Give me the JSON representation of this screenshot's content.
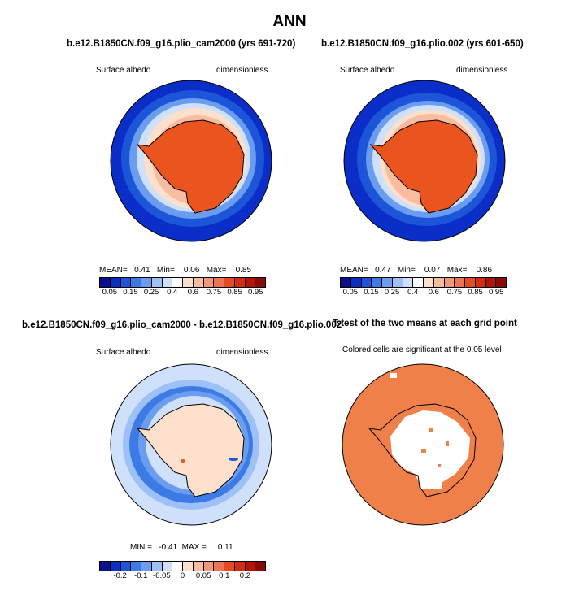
{
  "title": "ANN",
  "panels": [
    {
      "title": "b.e12.B1850CN.f09_g16.plio_cam2000 (yrs 691-720)",
      "left_label": "Surface albedo",
      "right_label": "dimensionless",
      "stats": "MEAN=   0.41   Min=    0.06   Max=    0.85"
    },
    {
      "title": "b.e12.B1850CN.f09_g16.plio.002 (yrs 601-650)",
      "left_label": "Surface albedo",
      "right_label": "dimensionless",
      "stats": "MEAN=   0.47   Min=    0.07   Max=    0.86"
    },
    {
      "title": "b.e12.B1850CN.f09_g16.plio_cam2000 - b.e12.B1850CN.f09_g16.plio.002",
      "left_label": "Surface albedo",
      "right_label": "dimensionless",
      "stats": "MIN =   -0.41  MAX =     0.11"
    },
    {
      "title": "T-test of the two means at each grid point",
      "subtitle": "Colored cells are significant at the 0.05 level"
    }
  ],
  "colorbar_abs": {
    "labels": [
      "0.05",
      "0.15",
      "0.25",
      "0.4",
      "0.6",
      "0.75",
      "0.85",
      "0.95"
    ],
    "colors": [
      "#08108a",
      "#0a2fc4",
      "#1d55d9",
      "#3c7ae6",
      "#6a9cf0",
      "#9dc0f7",
      "#cfe0fb",
      "#ffffff",
      "#fde0cc",
      "#f8bca0",
      "#f2987a",
      "#ed7352",
      "#e64a22",
      "#d42d0e",
      "#b11506",
      "#8a0a04"
    ]
  },
  "colorbar_diff": {
    "labels": [
      "-0.2",
      "-0.1",
      "-0.05",
      "0",
      "0.05",
      "0.1",
      "0.2"
    ],
    "colors": [
      "#08108a",
      "#0a2fc4",
      "#1d55d9",
      "#3c7ae6",
      "#6a9cf0",
      "#9dc0f7",
      "#cfe0fb",
      "#ffffff",
      "#fde0cc",
      "#f8bca0",
      "#f2987a",
      "#ed7352",
      "#e64a22",
      "#d42d0e",
      "#b11506",
      "#8a0a04"
    ]
  },
  "colors": {
    "ocean_low": "#0b2dc8",
    "ice_high": "#e9541f",
    "ttest_fill": "#f0804a"
  }
}
